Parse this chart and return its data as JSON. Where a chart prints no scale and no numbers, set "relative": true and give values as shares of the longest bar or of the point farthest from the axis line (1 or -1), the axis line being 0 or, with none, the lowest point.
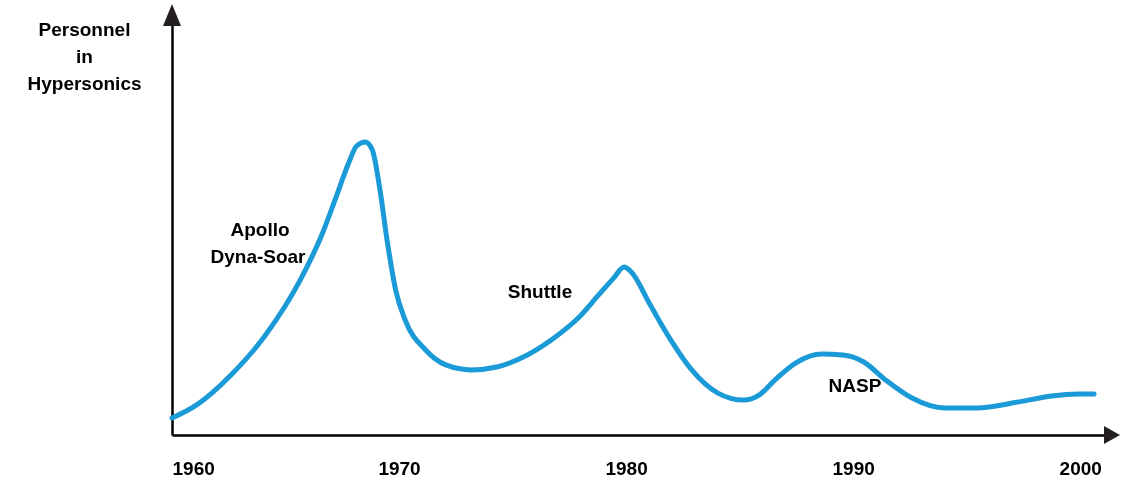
{
  "chart_data": {
    "type": "line",
    "relative": true,
    "ylabel": "Personnel\nin\nHypersonics",
    "x": [
      1960,
      1961.07,
      1962.6,
      1964.12,
      1965.65,
      1966.6,
      1967.18,
      1967.75,
      1968.13,
      1968.51,
      1968.82,
      1969.16,
      1969.47,
      1969.85,
      1970.27,
      1971.17,
      1972.06,
      1973.18,
      1974.3,
      1975.65,
      1977.0,
      1977.89,
      1978.79,
      1979.46,
      1979.91,
      1980.23,
      1981.06,
      1981.97,
      1982.89,
      1984.04,
      1985.18,
      1985.87,
      1986.56,
      1987.48,
      1988.62,
      1989.54,
      1990.47,
      1991.42,
      1992.59,
      1994.0,
      1995.42,
      1997.31,
      1998.73,
      1999.91,
      2000.61
    ],
    "series": [
      {
        "color": "#1a9ad6",
        "values": [
          0.058,
          0.102,
          0.205,
          0.341,
          0.529,
          0.683,
          0.802,
          0.922,
          0.986,
          1.0,
          0.973,
          0.836,
          0.666,
          0.495,
          0.392,
          0.29,
          0.239,
          0.222,
          0.232,
          0.273,
          0.341,
          0.399,
          0.478,
          0.536,
          0.573,
          0.556,
          0.444,
          0.324,
          0.222,
          0.143,
          0.119,
          0.137,
          0.188,
          0.246,
          0.276,
          0.273,
          0.249,
          0.188,
          0.126,
          0.092,
          0.092,
          0.113,
          0.133,
          0.14,
          0.14
        ]
      }
    ],
    "xlim": [
      1960,
      2001.4
    ],
    "xticks": [
      1960,
      1970,
      1980,
      1990,
      2000
    ],
    "annotations": [
      "Apollo",
      "Dyna-Soar",
      "Shuttle",
      "NASP"
    ]
  }
}
